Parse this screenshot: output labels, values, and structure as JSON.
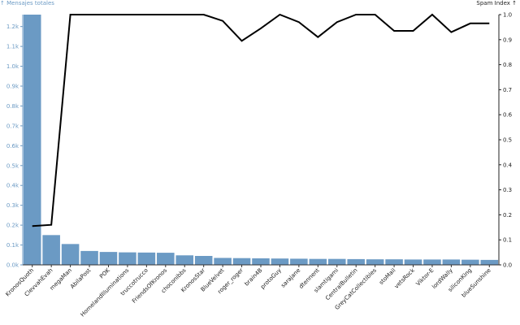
{
  "chart_data": {
    "type": "bar",
    "categories": [
      "KronosQuoth",
      "ClevvahEvah",
      "megaMan",
      "AbilaPost",
      "POK",
      "HomelandIlluminations",
      "truccotrucco",
      "FriendsOfKronos",
      "choconibbs",
      "KronosStar",
      "BlueVelvet",
      "roger_roger",
      "brain4B",
      "protoGuy",
      "sarajane",
      "dtennent",
      "slamtigami",
      "CentralBulletin",
      "GreyCatCollectibles",
      "stoMail",
      "vetsRock",
      "Viktor-E",
      "lordWally",
      "siliconKing",
      "blueSunshine"
    ],
    "series": [
      {
        "name": "Mensajes totales",
        "values": [
          1260,
          150,
          105,
          70,
          65,
          63,
          62,
          61,
          48,
          45,
          35,
          34,
          33,
          32,
          31,
          30,
          30,
          29,
          28,
          28,
          27,
          27,
          27,
          26,
          25
        ],
        "color": "#6b9ac4",
        "axis": "left"
      },
      {
        "name": "Spam Index",
        "values": [
          0.155,
          0.16,
          1.0,
          1.0,
          1.0,
          1.0,
          1.0,
          1.0,
          1.0,
          1.0,
          0.975,
          0.895,
          0.945,
          1.0,
          0.97,
          0.91,
          0.97,
          1.0,
          1.0,
          0.935,
          0.935,
          1.0,
          0.93,
          0.965,
          0.965
        ],
        "color": "#000000",
        "type": "line",
        "axis": "right"
      }
    ],
    "y_left": {
      "label": "Mensajes totales",
      "range": [
        0,
        1260
      ],
      "ticks": [
        0,
        100,
        200,
        300,
        400,
        500,
        600,
        700,
        800,
        900,
        1000,
        1100,
        1200
      ],
      "tick_labels": [
        "0.0k",
        "0.1k",
        "0.2k",
        "0.3k",
        "0.4k",
        "0.5k",
        "0.6k",
        "0.7k",
        "0.8k",
        "0.9k",
        "1.0k",
        "1.1k",
        "1.2k"
      ]
    },
    "y_right": {
      "label": "Spam Index",
      "range": [
        0,
        1.0
      ],
      "ticks": [
        0,
        0.1,
        0.2,
        0.3,
        0.4,
        0.5,
        0.6,
        0.7,
        0.8,
        0.9,
        1.0
      ],
      "tick_labels": [
        "0.0",
        "0.1",
        "0.2",
        "0.3",
        "0.4",
        "0.5",
        "0.6",
        "0.7",
        "0.8",
        "0.9",
        "1.0"
      ]
    },
    "axis_title_left": "↑ Mensajes totales",
    "axis_title_right": "Spam Index ↑",
    "grid": false,
    "legend": "none"
  }
}
